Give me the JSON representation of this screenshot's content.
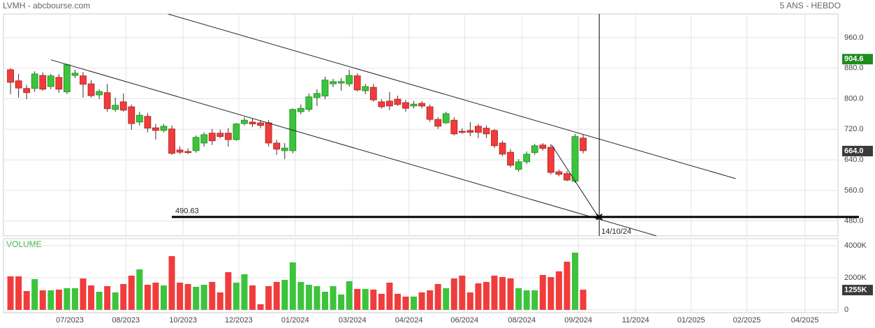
{
  "header": {
    "left": "LVMH - abcbourse.com",
    "right": "5 ANS - HEBDO"
  },
  "chart_data": [
    {
      "type": "candlestick",
      "categories": [
        null,
        null,
        null,
        null,
        null,
        null,
        null,
        null,
        null,
        null,
        null,
        null,
        null,
        null,
        null,
        null,
        null,
        null,
        null,
        null,
        null,
        null,
        null,
        null,
        null,
        null,
        null,
        null,
        null,
        null,
        null,
        null,
        null,
        null,
        null,
        null,
        null,
        null,
        null,
        null,
        null,
        null,
        null,
        null,
        null,
        null,
        null,
        null,
        null,
        null,
        null,
        null,
        null,
        null,
        null,
        null,
        null,
        null,
        null,
        null,
        null,
        null,
        null,
        null,
        null,
        null,
        null,
        null,
        null,
        null,
        null,
        null
      ],
      "open": [
        876,
        847,
        827,
        827,
        861,
        832,
        856,
        818,
        861,
        860,
        839,
        810,
        816,
        772,
        792,
        779,
        739,
        754,
        724,
        717,
        721,
        666,
        662,
        664,
        684,
        710,
        710,
        710,
        693,
        735,
        739,
        737,
        737,
        684,
        664,
        664,
        766,
        772,
        803,
        807,
        839,
        841,
        839,
        860,
        821,
        830,
        792,
        794,
        799,
        790,
        781,
        788,
        779,
        746,
        737,
        744,
        715,
        717,
        728,
        723,
        717,
        684,
        660,
        615,
        635,
        659,
        679,
        673,
        609,
        604,
        584,
        697
      ],
      "high": [
        880,
        865,
        836,
        872,
        869,
        865,
        865,
        892,
        876,
        870,
        849,
        825,
        839,
        803,
        814,
        785,
        766,
        763,
        734,
        734,
        730,
        675,
        670,
        704,
        712,
        721,
        719,
        723,
        737,
        752,
        748,
        744,
        744,
        693,
        684,
        775,
        785,
        814,
        825,
        858,
        852,
        854,
        876,
        867,
        839,
        839,
        799,
        818,
        808,
        797,
        794,
        794,
        785,
        752,
        766,
        752,
        723,
        739,
        734,
        730,
        721,
        690,
        668,
        642,
        662,
        682,
        684,
        681,
        615,
        611,
        708,
        706
      ],
      "low": [
        812,
        803,
        799,
        818,
        821,
        825,
        816,
        812,
        854,
        803,
        803,
        799,
        766,
        766,
        766,
        719,
        730,
        712,
        693,
        712,
        653,
        655,
        655,
        659,
        675,
        679,
        697,
        675,
        690,
        730,
        726,
        723,
        675,
        653,
        642,
        657,
        759,
        766,
        781,
        799,
        830,
        821,
        832,
        819,
        812,
        792,
        774,
        770,
        781,
        766,
        775,
        775,
        739,
        721,
        734,
        704,
        708,
        702,
        697,
        697,
        671,
        650,
        620,
        609,
        629,
        653,
        664,
        602,
        597,
        584,
        580,
        657
      ],
      "close": [
        843,
        828,
        816,
        865,
        825,
        860,
        825,
        889,
        867,
        838,
        808,
        819,
        774,
        783,
        770,
        735,
        757,
        723,
        717,
        728,
        657,
        660,
        659,
        699,
        706,
        690,
        701,
        693,
        734,
        744,
        734,
        730,
        684,
        668,
        671,
        772,
        775,
        805,
        814,
        849,
        845,
        845,
        861,
        823,
        832,
        797,
        779,
        781,
        785,
        775,
        786,
        781,
        746,
        728,
        761,
        708,
        712,
        712,
        712,
        708,
        677,
        655,
        626,
        635,
        655,
        677,
        670,
        607,
        602,
        587,
        701,
        664
      ],
      "up_color": "#3cc43c",
      "down_color": "#f03c3c",
      "xlim": [
        -0.87,
        102.6
      ],
      "ylim": [
        441,
        1022
      ],
      "yticks": [
        {
          "value": 480,
          "label": "480.0"
        },
        {
          "value": 560,
          "label": "560.0"
        },
        {
          "value": 640,
          "label": "640.0"
        },
        {
          "value": 720,
          "label": "720.0"
        },
        {
          "value": 800,
          "label": "800.0"
        },
        {
          "value": 880,
          "label": "880.0"
        },
        {
          "value": 960,
          "label": "960.0"
        }
      ],
      "grid": true,
      "price_tags": [
        {
          "value": 904.6,
          "label": "904.6",
          "color": "#1e8c1e"
        },
        {
          "value": 664,
          "label": "664.0",
          "color": "#3a3a3a"
        }
      ],
      "trend_lines": [
        {
          "x": [
            19.5,
            89.9
          ],
          "y": [
            1022,
            591
          ]
        },
        {
          "x": [
            5.0,
            80.1
          ],
          "y": [
            902,
            441
          ]
        },
        {
          "x": [
            67.1,
            73.0
          ],
          "y": [
            679,
            487
          ]
        }
      ],
      "support": {
        "value": 490.63,
        "label": "490.63",
        "x_start": 20
      },
      "marker": {
        "x": 73,
        "label": "14/10/24"
      }
    },
    {
      "type": "bar",
      "title": "VOLUME",
      "values": [
        2087,
        2087,
        1174,
        1913,
        1217,
        1217,
        1261,
        1348,
        1348,
        1957,
        1522,
        1130,
        1478,
        1087,
        1609,
        2130,
        2522,
        1565,
        1696,
        1522,
        3348,
        1696,
        1609,
        1435,
        1565,
        1739,
        1087,
        2348,
        1696,
        2217,
        1522,
        348,
        1478,
        1739,
        1870,
        2957,
        1739,
        1565,
        1478,
        1130,
        1478,
        957,
        1783,
        1304,
        1304,
        1261,
        1000,
        1696,
        1000,
        826,
        826,
        1087,
        1217,
        1609,
        1348,
        1957,
        2130,
        1087,
        1652,
        1739,
        2130,
        2043,
        1957,
        1348,
        1217,
        1217,
        2174,
        2043,
        2400,
        3000,
        3565,
        1255
      ],
      "xlim": [
        -0.87,
        102.6
      ],
      "xticks": [
        {
          "value": 7.36,
          "label": "07/2023"
        },
        {
          "value": 14.3,
          "label": "08/2023"
        },
        {
          "value": 21.4,
          "label": "10/2023"
        },
        {
          "value": 28.3,
          "label": "12/2023"
        },
        {
          "value": 35.3,
          "label": "01/2024"
        },
        {
          "value": 42.4,
          "label": "03/2024"
        },
        {
          "value": 49.4,
          "label": "04/2024"
        },
        {
          "value": 56.3,
          "label": "06/2024"
        },
        {
          "value": 63.4,
          "label": "08/2024"
        },
        {
          "value": 70.4,
          "label": "09/2024"
        },
        {
          "value": 77.5,
          "label": "11/2024"
        },
        {
          "value": 84.4,
          "label": "01/2025"
        },
        {
          "value": 91.3,
          "label": "02/2025"
        },
        {
          "value": 98.5,
          "label": "04/2025"
        }
      ],
      "ylim": [
        -174,
        4435
      ],
      "yticks": [
        0,
        {
          "value": 2000,
          "label": "2000K"
        },
        {
          "value": 4000,
          "label": "4000K"
        }
      ],
      "value_tag": {
        "value": 1255,
        "label": "1255K",
        "color": "#3a3a3a"
      }
    }
  ]
}
